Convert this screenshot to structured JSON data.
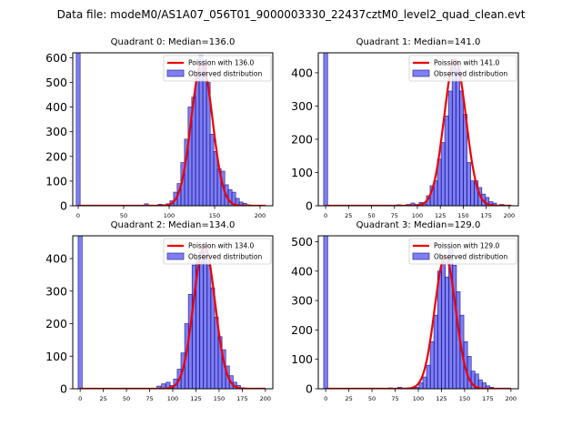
{
  "figure_title": "Data file: modeM0/AS1A07_056T01_9000003330_22437cztM0_level2_quad_clean.evt",
  "colors": {
    "histogram": "#0000e6",
    "fit": "#ee0000"
  },
  "chart_data": [
    {
      "type": "bar",
      "title": "Quadrant 0: Median=136.0",
      "xlim": [
        -6,
        214
      ],
      "ylim": [
        0,
        620
      ],
      "xticks": [
        0,
        50,
        100,
        150,
        200
      ],
      "yticks": [
        0,
        100,
        200,
        300,
        400,
        500,
        600
      ],
      "bin_width": 4.3,
      "bins": [
        [
          0,
          620
        ],
        [
          75,
          8
        ],
        [
          90,
          6
        ],
        [
          95,
          4
        ],
        [
          99,
          8
        ],
        [
          103,
          20
        ],
        [
          107,
          55
        ],
        [
          111,
          90
        ],
        [
          115,
          175
        ],
        [
          119,
          270
        ],
        [
          123,
          400
        ],
        [
          127,
          440
        ],
        [
          131,
          520
        ],
        [
          135,
          610
        ],
        [
          139,
          590
        ],
        [
          143,
          500
        ],
        [
          147,
          290
        ],
        [
          151,
          220
        ],
        [
          155,
          150
        ],
        [
          159,
          140
        ],
        [
          163,
          85
        ],
        [
          167,
          65
        ],
        [
          171,
          55
        ],
        [
          175,
          30
        ],
        [
          179,
          15
        ],
        [
          183,
          10
        ],
        [
          187,
          4
        ],
        [
          195,
          2
        ]
      ],
      "fit": {
        "lambda": 136.0,
        "peak": 580,
        "label": "Poission with 136.0"
      },
      "legend": [
        "Poission with 136.0",
        "Observed distribution"
      ]
    },
    {
      "type": "bar",
      "title": "Quadrant 1: Median=141.0",
      "xlim": [
        -8,
        210
      ],
      "ylim": [
        0,
        460
      ],
      "xticks": [
        0,
        25,
        50,
        75,
        100,
        125,
        150,
        175,
        200
      ],
      "yticks": [
        0,
        100,
        200,
        300,
        400
      ],
      "bin_width": 4.3,
      "bins": [
        [
          0,
          460
        ],
        [
          80,
          3
        ],
        [
          90,
          4
        ],
        [
          95,
          8
        ],
        [
          100,
          4
        ],
        [
          104,
          10
        ],
        [
          108,
          5
        ],
        [
          112,
          30
        ],
        [
          116,
          60
        ],
        [
          120,
          75
        ],
        [
          124,
          140
        ],
        [
          128,
          190
        ],
        [
          132,
          270
        ],
        [
          136,
          345
        ],
        [
          140,
          440
        ],
        [
          144,
          410
        ],
        [
          148,
          345
        ],
        [
          152,
          275
        ],
        [
          156,
          130
        ],
        [
          160,
          75
        ],
        [
          164,
          75
        ],
        [
          168,
          55
        ],
        [
          172,
          35
        ],
        [
          176,
          25
        ],
        [
          180,
          12
        ],
        [
          184,
          8
        ],
        [
          192,
          4
        ],
        [
          200,
          2
        ]
      ],
      "fit": {
        "lambda": 141.0,
        "peak": 440,
        "label": "Poission with 141.0"
      },
      "legend": [
        "Poission with 141.0",
        "Observed distribution"
      ]
    },
    {
      "type": "bar",
      "title": "Quadrant 2: Median=134.0",
      "xlim": [
        -8,
        208
      ],
      "ylim": [
        0,
        470
      ],
      "xticks": [
        0,
        25,
        50,
        75,
        100,
        125,
        150,
        175,
        200
      ],
      "yticks": [
        0,
        100,
        200,
        300,
        400
      ],
      "bin_width": 4.3,
      "bins": [
        [
          0,
          470
        ],
        [
          85,
          8
        ],
        [
          90,
          15
        ],
        [
          95,
          20
        ],
        [
          99,
          10
        ],
        [
          103,
          30
        ],
        [
          107,
          60
        ],
        [
          111,
          110
        ],
        [
          115,
          200
        ],
        [
          119,
          290
        ],
        [
          123,
          380
        ],
        [
          127,
          400
        ],
        [
          131,
          420
        ],
        [
          135,
          450
        ],
        [
          139,
          380
        ],
        [
          143,
          310
        ],
        [
          147,
          220
        ],
        [
          151,
          160
        ],
        [
          155,
          120
        ],
        [
          159,
          70
        ],
        [
          163,
          40
        ],
        [
          167,
          20
        ],
        [
          171,
          10
        ],
        [
          175,
          3
        ]
      ],
      "fit": {
        "lambda": 134.0,
        "peak": 440,
        "label": "Poission with 134.0"
      },
      "legend": [
        "Poission with 134.0",
        "Observed distribution"
      ]
    },
    {
      "type": "bar",
      "title": "Quadrant 3: Median=129.0",
      "xlim": [
        -8,
        208
      ],
      "ylim": [
        0,
        520
      ],
      "xticks": [
        0,
        25,
        50,
        75,
        100,
        125,
        150,
        175,
        200
      ],
      "yticks": [
        0,
        100,
        200,
        300,
        400,
        500
      ],
      "bin_width": 4.3,
      "bins": [
        [
          0,
          520
        ],
        [
          70,
          3
        ],
        [
          80,
          5
        ],
        [
          90,
          3
        ],
        [
          95,
          3
        ],
        [
          99,
          5
        ],
        [
          103,
          20
        ],
        [
          107,
          40
        ],
        [
          111,
          80
        ],
        [
          115,
          160
        ],
        [
          119,
          250
        ],
        [
          123,
          400
        ],
        [
          127,
          450
        ],
        [
          131,
          380
        ],
        [
          135,
          480
        ],
        [
          139,
          420
        ],
        [
          143,
          330
        ],
        [
          147,
          250
        ],
        [
          151,
          160
        ],
        [
          155,
          110
        ],
        [
          159,
          60
        ],
        [
          163,
          50
        ],
        [
          167,
          30
        ],
        [
          171,
          20
        ],
        [
          175,
          10
        ],
        [
          179,
          5
        ],
        [
          187,
          2
        ]
      ],
      "fit": {
        "lambda": 129.0,
        "peak": 450,
        "label": "Poission with 129.0"
      },
      "legend": [
        "Poission with 129.0",
        "Observed distribution"
      ]
    }
  ]
}
